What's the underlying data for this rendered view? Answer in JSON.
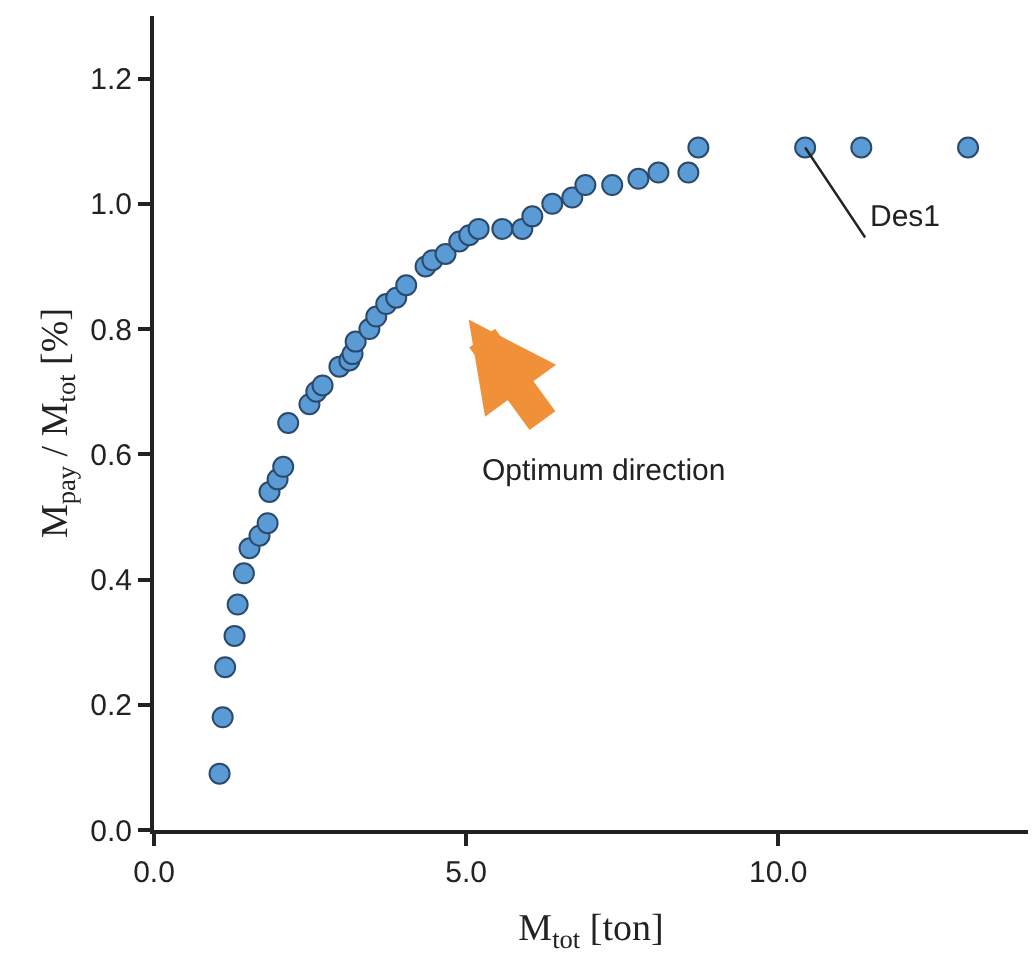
{
  "chart_data": {
    "type": "scatter",
    "xlabel": "M$_{tot}$ [ton]",
    "ylabel": "M$_{pay}$ / M$_{tot}$ [%]",
    "xlim": [
      0,
      14
    ],
    "ylim": [
      0,
      1.3
    ],
    "xticks": [
      {
        "value": 0,
        "label": "0.0"
      },
      {
        "value": 5,
        "label": "5.0"
      },
      {
        "value": 10,
        "label": "10.0"
      }
    ],
    "yticks": [
      {
        "value": 0,
        "label": "0.0"
      },
      {
        "value": 0.2,
        "label": "0.2"
      },
      {
        "value": 0.4,
        "label": "0.4"
      },
      {
        "value": 0.6,
        "label": "0.6"
      },
      {
        "value": 0.8,
        "label": "0.8"
      },
      {
        "value": 1.0,
        "label": "1.0"
      },
      {
        "value": 1.2,
        "label": "1.2"
      }
    ],
    "legend": false,
    "marker": "circle",
    "series": [
      {
        "color": "#5b9bd5",
        "x": [
          1.05,
          1.1,
          1.14,
          1.29,
          1.34,
          1.44,
          1.53,
          1.69,
          1.82,
          1.85,
          1.98,
          2.07,
          2.15,
          2.49,
          2.6,
          2.7,
          2.97,
          3.13,
          3.18,
          3.23,
          3.45,
          3.56,
          3.72,
          3.88,
          4.04,
          4.35,
          4.46,
          4.67,
          4.89,
          5.05,
          5.2,
          5.58,
          5.9,
          6.06,
          6.38,
          6.7,
          6.91,
          7.34,
          7.76,
          8.08,
          8.56,
          8.72,
          10.43,
          11.33,
          13.04
        ],
        "values": [
          0.09,
          0.18,
          0.26,
          0.31,
          0.36,
          0.41,
          0.45,
          0.47,
          0.49,
          0.54,
          0.56,
          0.58,
          0.65,
          0.68,
          0.7,
          0.71,
          0.74,
          0.75,
          0.76,
          0.78,
          0.8,
          0.82,
          0.84,
          0.85,
          0.87,
          0.9,
          0.91,
          0.92,
          0.94,
          0.95,
          0.96,
          0.96,
          0.96,
          0.98,
          1.0,
          1.01,
          1.03,
          1.03,
          1.04,
          1.05,
          1.05,
          1.09,
          1.09,
          1.09,
          1.09
        ]
      }
    ],
    "annotations": [
      {
        "text": "Des1",
        "x": 10.43,
        "y": 1.09
      },
      "Optimum direction"
    ]
  }
}
